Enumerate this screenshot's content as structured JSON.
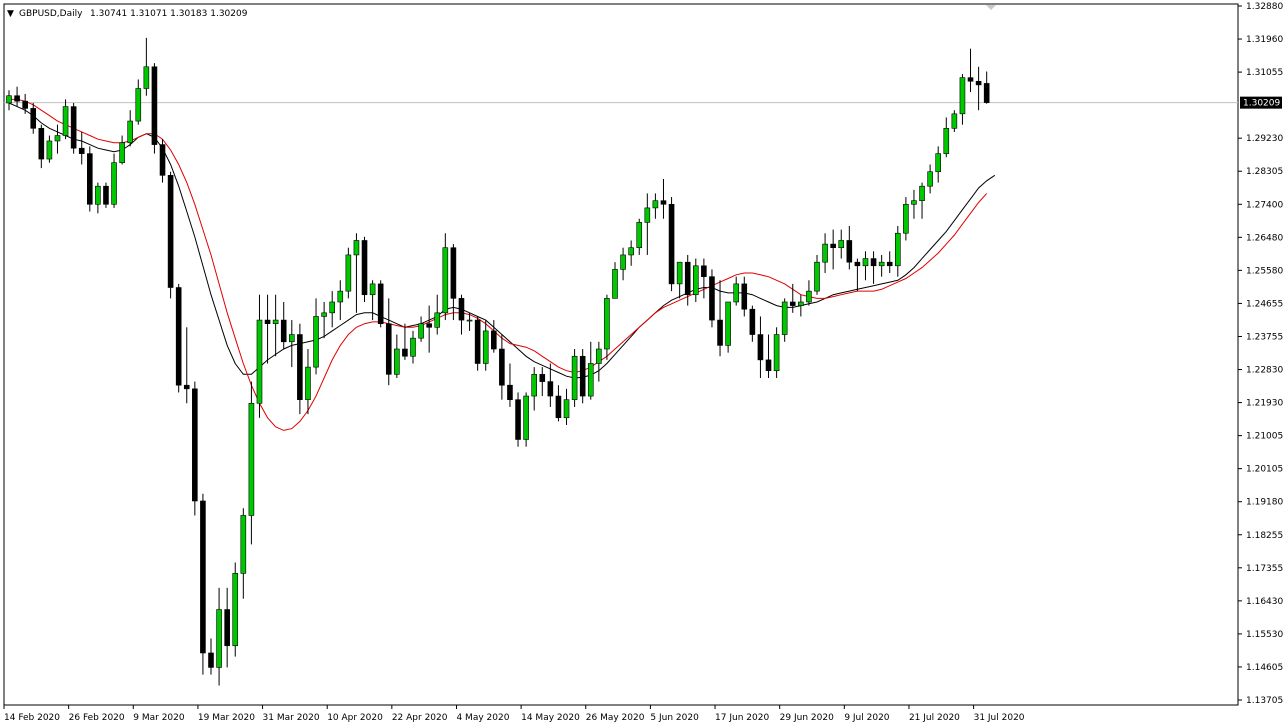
{
  "chart_data": {
    "type": "candlestick",
    "title": "GBPUSD,Daily",
    "ohlc_label": "1.30741 1.31071 1.30183 1.30209",
    "current_price": 1.30209,
    "current_price_label": "1.30209",
    "ylim": [
      1.137,
      1.3288
    ],
    "y_ticks": [
      "1.32880",
      "1.31960",
      "1.31055",
      "1.30209",
      "1.29230",
      "1.28305",
      "1.27400",
      "1.26480",
      "1.25580",
      "1.24655",
      "1.23755",
      "1.22830",
      "1.21930",
      "1.21005",
      "1.20105",
      "1.19180",
      "1.18255",
      "1.17355",
      "1.16430",
      "1.15530",
      "1.14605",
      "1.13705"
    ],
    "x_ticks": [
      "14 Feb 2020",
      "26 Feb 2020",
      "9 Mar 2020",
      "19 Mar 2020",
      "31 Mar 2020",
      "10 Apr 2020",
      "22 Apr 2020",
      "4 May 2020",
      "14 May 2020",
      "26 May 2020",
      "5 Jun 2020",
      "17 Jun 2020",
      "29 Jun 2020",
      "9 Jul 2020",
      "21 Jul 2020",
      "31 Jul 2020"
    ],
    "x_tick_index": [
      0,
      8,
      16,
      24,
      32,
      40,
      48,
      56,
      64,
      72,
      80,
      88,
      96,
      104,
      112,
      120
    ],
    "candles": [
      [
        1.302,
        1.3055,
        1.3,
        1.304
      ],
      [
        1.304,
        1.3065,
        1.301,
        1.3025
      ],
      [
        1.3025,
        1.3045,
        1.299,
        1.3005
      ],
      [
        1.3005,
        1.302,
        1.2935,
        1.295
      ],
      [
        1.295,
        1.296,
        1.284,
        1.2865
      ],
      [
        1.2865,
        1.293,
        1.2855,
        1.2915
      ],
      [
        1.2915,
        1.296,
        1.288,
        1.293
      ],
      [
        1.293,
        1.303,
        1.292,
        1.301
      ],
      [
        1.301,
        1.302,
        1.288,
        1.2895
      ],
      [
        1.2895,
        1.294,
        1.285,
        1.288
      ],
      [
        1.288,
        1.29,
        1.272,
        1.274
      ],
      [
        1.274,
        1.28,
        1.2715,
        1.279
      ],
      [
        1.279,
        1.28,
        1.273,
        1.274
      ],
      [
        1.274,
        1.288,
        1.273,
        1.2855
      ],
      [
        1.2855,
        1.293,
        1.285,
        1.291
      ],
      [
        1.291,
        1.3,
        1.29,
        1.297
      ],
      [
        1.297,
        1.3085,
        1.296,
        1.306
      ],
      [
        1.306,
        1.32,
        1.304,
        1.312
      ],
      [
        1.312,
        1.313,
        1.288,
        1.2905
      ],
      [
        1.2905,
        1.292,
        1.28,
        1.282
      ],
      [
        1.282,
        1.283,
        1.248,
        1.251
      ],
      [
        1.251,
        1.252,
        1.222,
        1.224
      ],
      [
        1.224,
        1.24,
        1.219,
        1.223
      ],
      [
        1.223,
        1.225,
        1.188,
        1.192
      ],
      [
        1.192,
        1.194,
        1.144,
        1.15
      ],
      [
        1.15,
        1.154,
        1.144,
        1.146
      ],
      [
        1.146,
        1.168,
        1.141,
        1.162
      ],
      [
        1.162,
        1.168,
        1.146,
        1.152
      ],
      [
        1.152,
        1.175,
        1.149,
        1.172
      ],
      [
        1.172,
        1.19,
        1.165,
        1.188
      ],
      [
        1.188,
        1.225,
        1.18,
        1.219
      ],
      [
        1.219,
        1.249,
        1.215,
        1.242
      ],
      [
        1.242,
        1.249,
        1.23,
        1.241
      ],
      [
        1.241,
        1.249,
        1.232,
        1.242
      ],
      [
        1.242,
        1.247,
        1.234,
        1.236
      ],
      [
        1.236,
        1.242,
        1.229,
        1.238
      ],
      [
        1.238,
        1.241,
        1.216,
        1.22
      ],
      [
        1.22,
        1.234,
        1.216,
        1.229
      ],
      [
        1.229,
        1.248,
        1.227,
        1.243
      ],
      [
        1.243,
        1.247,
        1.237,
        1.244
      ],
      [
        1.244,
        1.25,
        1.24,
        1.247
      ],
      [
        1.247,
        1.253,
        1.242,
        1.25
      ],
      [
        1.25,
        1.262,
        1.248,
        1.26
      ],
      [
        1.26,
        1.266,
        1.244,
        1.264
      ],
      [
        1.264,
        1.265,
        1.247,
        1.249
      ],
      [
        1.249,
        1.253,
        1.242,
        1.252
      ],
      [
        1.252,
        1.253,
        1.24,
        1.241
      ],
      [
        1.241,
        1.248,
        1.224,
        1.227
      ],
      [
        1.227,
        1.238,
        1.226,
        1.234
      ],
      [
        1.234,
        1.241,
        1.231,
        1.232
      ],
      [
        1.232,
        1.239,
        1.23,
        1.237
      ],
      [
        1.237,
        1.243,
        1.236,
        1.241
      ],
      [
        1.241,
        1.246,
        1.233,
        1.24
      ],
      [
        1.24,
        1.249,
        1.238,
        1.244
      ],
      [
        1.244,
        1.266,
        1.242,
        1.262
      ],
      [
        1.262,
        1.263,
        1.242,
        1.248
      ],
      [
        1.248,
        1.249,
        1.238,
        1.242
      ],
      [
        1.242,
        1.244,
        1.239,
        1.242
      ],
      [
        1.242,
        1.243,
        1.228,
        1.23
      ],
      [
        1.23,
        1.242,
        1.228,
        1.239
      ],
      [
        1.239,
        1.242,
        1.233,
        1.234
      ],
      [
        1.234,
        1.238,
        1.22,
        1.224
      ],
      [
        1.224,
        1.23,
        1.218,
        1.22
      ],
      [
        1.22,
        1.222,
        1.207,
        1.209
      ],
      [
        1.209,
        1.222,
        1.207,
        1.221
      ],
      [
        1.221,
        1.229,
        1.217,
        1.227
      ],
      [
        1.227,
        1.229,
        1.221,
        1.225
      ],
      [
        1.225,
        1.23,
        1.218,
        1.221
      ],
      [
        1.221,
        1.224,
        1.214,
        1.215
      ],
      [
        1.215,
        1.223,
        1.213,
        1.22
      ],
      [
        1.22,
        1.234,
        1.218,
        1.232
      ],
      [
        1.232,
        1.234,
        1.219,
        1.221
      ],
      [
        1.221,
        1.236,
        1.22,
        1.23
      ],
      [
        1.23,
        1.236,
        1.225,
        1.234
      ],
      [
        1.234,
        1.249,
        1.231,
        1.248
      ],
      [
        1.248,
        1.258,
        1.248,
        1.256
      ],
      [
        1.256,
        1.262,
        1.253,
        1.26
      ],
      [
        1.26,
        1.264,
        1.257,
        1.262
      ],
      [
        1.262,
        1.27,
        1.26,
        1.269
      ],
      [
        1.269,
        1.277,
        1.26,
        1.273
      ],
      [
        1.273,
        1.277,
        1.27,
        1.275
      ],
      [
        1.275,
        1.281,
        1.27,
        1.274
      ],
      [
        1.274,
        1.276,
        1.25,
        1.252
      ],
      [
        1.252,
        1.258,
        1.248,
        1.258
      ],
      [
        1.258,
        1.26,
        1.246,
        1.249
      ],
      [
        1.249,
        1.259,
        1.247,
        1.257
      ],
      [
        1.257,
        1.259,
        1.248,
        1.254
      ],
      [
        1.254,
        1.256,
        1.24,
        1.242
      ],
      [
        1.242,
        1.253,
        1.232,
        1.235
      ],
      [
        1.235,
        1.247,
        1.233,
        1.247
      ],
      [
        1.247,
        1.254,
        1.246,
        1.252
      ],
      [
        1.252,
        1.254,
        1.243,
        1.245
      ],
      [
        1.245,
        1.246,
        1.236,
        1.238
      ],
      [
        1.238,
        1.243,
        1.226,
        1.231
      ],
      [
        1.231,
        1.238,
        1.226,
        1.228
      ],
      [
        1.228,
        1.24,
        1.226,
        1.238
      ],
      [
        1.238,
        1.248,
        1.236,
        1.247
      ],
      [
        1.247,
        1.252,
        1.244,
        1.246
      ],
      [
        1.246,
        1.249,
        1.243,
        1.247
      ],
      [
        1.247,
        1.253,
        1.246,
        1.25
      ],
      [
        1.25,
        1.26,
        1.249,
        1.258
      ],
      [
        1.258,
        1.266,
        1.255,
        1.263
      ],
      [
        1.263,
        1.267,
        1.256,
        1.262
      ],
      [
        1.262,
        1.267,
        1.259,
        1.264
      ],
      [
        1.264,
        1.268,
        1.256,
        1.258
      ],
      [
        1.258,
        1.259,
        1.25,
        1.257
      ],
      [
        1.257,
        1.261,
        1.253,
        1.259
      ],
      [
        1.259,
        1.261,
        1.252,
        1.257
      ],
      [
        1.257,
        1.26,
        1.254,
        1.258
      ],
      [
        1.258,
        1.261,
        1.255,
        1.257
      ],
      [
        1.257,
        1.268,
        1.254,
        1.266
      ],
      [
        1.266,
        1.276,
        1.264,
        1.274
      ],
      [
        1.274,
        1.278,
        1.27,
        1.275
      ],
      [
        1.275,
        1.28,
        1.27,
        1.279
      ],
      [
        1.279,
        1.285,
        1.277,
        1.283
      ],
      [
        1.283,
        1.29,
        1.28,
        1.288
      ],
      [
        1.288,
        1.298,
        1.287,
        1.295
      ],
      [
        1.295,
        1.3,
        1.294,
        1.299
      ],
      [
        1.299,
        1.31,
        1.296,
        1.309
      ],
      [
        1.309,
        1.317,
        1.305,
        1.308
      ],
      [
        1.308,
        1.312,
        1.3,
        1.307
      ],
      [
        1.3074,
        1.3107,
        1.3018,
        1.3021
      ]
    ],
    "sma_black": [
      1.302,
      1.301,
      1.3,
      1.2985,
      1.2965,
      1.295,
      1.294,
      1.293,
      1.292,
      1.2915,
      1.2905,
      1.2895,
      1.289,
      1.2885,
      1.289,
      1.2905,
      1.2925,
      1.2935,
      1.2925,
      1.2895,
      1.285,
      1.279,
      1.272,
      1.265,
      1.257,
      1.249,
      1.242,
      1.235,
      1.23,
      1.227,
      1.227,
      1.229,
      1.231,
      1.2325,
      1.234,
      1.235,
      1.2355,
      1.236,
      1.2365,
      1.2375,
      1.239,
      1.2405,
      1.242,
      1.2435,
      1.244,
      1.244,
      1.243,
      1.242,
      1.241,
      1.24,
      1.2405,
      1.241,
      1.242,
      1.243,
      1.245,
      1.2455,
      1.245,
      1.244,
      1.243,
      1.242,
      1.24,
      1.238,
      1.236,
      1.234,
      1.232,
      1.2305,
      1.2295,
      1.2285,
      1.2275,
      1.2265,
      1.226,
      1.2262,
      1.2268,
      1.228,
      1.23,
      1.2325,
      1.235,
      1.2375,
      1.24,
      1.242,
      1.244,
      1.246,
      1.2475,
      1.2485,
      1.2495,
      1.2505,
      1.251,
      1.251,
      1.25,
      1.2495,
      1.2495,
      1.2495,
      1.249,
      1.248,
      1.247,
      1.246,
      1.2455,
      1.2455,
      1.246,
      1.2465,
      1.247,
      1.248,
      1.249,
      1.2495,
      1.25,
      1.2505,
      1.251,
      1.2515,
      1.252,
      1.2525,
      1.253,
      1.2545,
      1.2565,
      1.259,
      1.2615,
      1.264,
      1.2665,
      1.2695,
      1.2725,
      1.2755,
      1.2785,
      1.2805,
      1.282
    ],
    "sma_red": [
      1.303,
      1.303,
      1.3025,
      1.3015,
      1.3,
      1.2985,
      1.297,
      1.296,
      1.295,
      1.294,
      1.293,
      1.292,
      1.2915,
      1.291,
      1.291,
      1.2915,
      1.2925,
      1.2935,
      1.2935,
      1.292,
      1.289,
      1.285,
      1.28,
      1.274,
      1.267,
      1.26,
      1.252,
      1.244,
      1.237,
      1.23,
      1.224,
      1.219,
      1.215,
      1.2125,
      1.2115,
      1.212,
      1.214,
      1.217,
      1.221,
      1.226,
      1.231,
      1.235,
      1.238,
      1.24,
      1.241,
      1.2415,
      1.2415,
      1.241,
      1.2405,
      1.24,
      1.24,
      1.2405,
      1.2415,
      1.2425,
      1.2435,
      1.244,
      1.244,
      1.2435,
      1.2425,
      1.241,
      1.239,
      1.237,
      1.2355,
      1.235,
      1.2345,
      1.2335,
      1.232,
      1.2305,
      1.229,
      1.228,
      1.2275,
      1.228,
      1.229,
      1.2305,
      1.232,
      1.234,
      1.236,
      1.238,
      1.24,
      1.242,
      1.244,
      1.2455,
      1.2465,
      1.2475,
      1.2485,
      1.2495,
      1.2505,
      1.2515,
      1.2525,
      1.2535,
      1.2545,
      1.255,
      1.255,
      1.2545,
      1.254,
      1.253,
      1.252,
      1.2505,
      1.249,
      1.2485,
      1.248,
      1.248,
      1.2485,
      1.249,
      1.2495,
      1.25,
      1.25,
      1.25,
      1.2505,
      1.2515,
      1.2525,
      1.2535,
      1.255,
      1.2565,
      1.2585,
      1.2605,
      1.263,
      1.2655,
      1.2685,
      1.2715,
      1.2745,
      1.277
    ],
    "colors": {
      "bull_body": "#00c800",
      "bear_body": "#000000",
      "wick": "#000000",
      "sma_black": "#000000",
      "sma_red": "#e00000",
      "price_line": "#c0c0c0",
      "price_label_bg": "#000000",
      "price_label_text": "#ffffff"
    },
    "grid": false,
    "legend": "none"
  }
}
